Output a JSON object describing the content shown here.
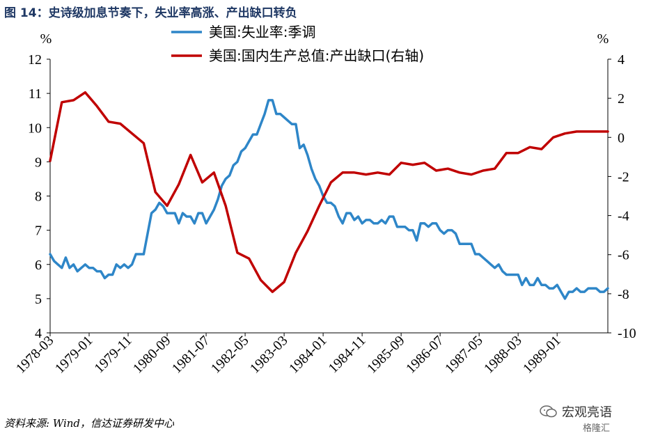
{
  "figure": {
    "title": "图 14：史诗级加息节奏下，失业率高涨、产出缺口转负",
    "source": "资料来源: Wind，信达证券研发中心",
    "watermark": "宏观亮语",
    "watermark_sub": "格隆汇"
  },
  "chart_data": {
    "type": "line",
    "title": "图 14：史诗级加息节奏下，失业率高涨、产出缺口转负",
    "left_axis": {
      "unit": "%",
      "min": 4,
      "max": 12,
      "ticks": [
        4,
        5,
        6,
        7,
        8,
        9,
        10,
        11,
        12
      ]
    },
    "right_axis": {
      "unit": "%",
      "min": -10,
      "max": 4,
      "ticks": [
        -10,
        -8,
        -6,
        -4,
        -2,
        0,
        2,
        4
      ]
    },
    "x_labels": [
      "1978-03",
      "1979-01",
      "1979-11",
      "1980-09",
      "1981-07",
      "1982-05",
      "1983-03",
      "1984-01",
      "1984-11",
      "1985-09",
      "1986-07",
      "1987-05",
      "1988-03",
      "1989-01"
    ],
    "x_range": [
      "1978-03",
      "1990-02"
    ],
    "legend_placement": "top-center",
    "grid": false,
    "series": [
      {
        "name": "美国:失业率:季调",
        "axis": "left",
        "color": "#2e86c8",
        "points": [
          [
            "1978-03",
            6.3
          ],
          [
            "1978-04",
            6.1
          ],
          [
            "1978-05",
            6.0
          ],
          [
            "1978-06",
            5.9
          ],
          [
            "1978-07",
            6.2
          ],
          [
            "1978-08",
            5.9
          ],
          [
            "1978-09",
            6.0
          ],
          [
            "1978-10",
            5.8
          ],
          [
            "1978-11",
            5.9
          ],
          [
            "1978-12",
            6.0
          ],
          [
            "1979-01",
            5.9
          ],
          [
            "1979-02",
            5.9
          ],
          [
            "1979-03",
            5.8
          ],
          [
            "1979-04",
            5.8
          ],
          [
            "1979-05",
            5.6
          ],
          [
            "1979-06",
            5.7
          ],
          [
            "1979-07",
            5.7
          ],
          [
            "1979-08",
            6.0
          ],
          [
            "1979-09",
            5.9
          ],
          [
            "1979-10",
            6.0
          ],
          [
            "1979-11",
            5.9
          ],
          [
            "1979-12",
            6.0
          ],
          [
            "1980-01",
            6.3
          ],
          [
            "1980-02",
            6.3
          ],
          [
            "1980-03",
            6.3
          ],
          [
            "1980-04",
            6.9
          ],
          [
            "1980-05",
            7.5
          ],
          [
            "1980-06",
            7.6
          ],
          [
            "1980-07",
            7.8
          ],
          [
            "1980-08",
            7.7
          ],
          [
            "1980-09",
            7.5
          ],
          [
            "1980-10",
            7.5
          ],
          [
            "1980-11",
            7.5
          ],
          [
            "1980-12",
            7.2
          ],
          [
            "1981-01",
            7.5
          ],
          [
            "1981-02",
            7.4
          ],
          [
            "1981-03",
            7.4
          ],
          [
            "1981-04",
            7.2
          ],
          [
            "1981-05",
            7.5
          ],
          [
            "1981-06",
            7.5
          ],
          [
            "1981-07",
            7.2
          ],
          [
            "1981-08",
            7.4
          ],
          [
            "1981-09",
            7.6
          ],
          [
            "1981-10",
            7.9
          ],
          [
            "1981-11",
            8.3
          ],
          [
            "1981-12",
            8.5
          ],
          [
            "1982-01",
            8.6
          ],
          [
            "1982-02",
            8.9
          ],
          [
            "1982-03",
            9.0
          ],
          [
            "1982-04",
            9.3
          ],
          [
            "1982-05",
            9.4
          ],
          [
            "1982-06",
            9.6
          ],
          [
            "1982-07",
            9.8
          ],
          [
            "1982-08",
            9.8
          ],
          [
            "1982-09",
            10.1
          ],
          [
            "1982-10",
            10.4
          ],
          [
            "1982-11",
            10.8
          ],
          [
            "1982-12",
            10.8
          ],
          [
            "1983-01",
            10.4
          ],
          [
            "1983-02",
            10.4
          ],
          [
            "1983-03",
            10.3
          ],
          [
            "1983-04",
            10.2
          ],
          [
            "1983-05",
            10.1
          ],
          [
            "1983-06",
            10.1
          ],
          [
            "1983-07",
            9.4
          ],
          [
            "1983-08",
            9.5
          ],
          [
            "1983-09",
            9.2
          ],
          [
            "1983-10",
            8.8
          ],
          [
            "1983-11",
            8.5
          ],
          [
            "1983-12",
            8.3
          ],
          [
            "1984-01",
            8.0
          ],
          [
            "1984-02",
            7.8
          ],
          [
            "1984-03",
            7.8
          ],
          [
            "1984-04",
            7.7
          ],
          [
            "1984-05",
            7.4
          ],
          [
            "1984-06",
            7.2
          ],
          [
            "1984-07",
            7.5
          ],
          [
            "1984-08",
            7.5
          ],
          [
            "1984-09",
            7.3
          ],
          [
            "1984-10",
            7.4
          ],
          [
            "1984-11",
            7.2
          ],
          [
            "1984-12",
            7.3
          ],
          [
            "1985-01",
            7.3
          ],
          [
            "1985-02",
            7.2
          ],
          [
            "1985-03",
            7.2
          ],
          [
            "1985-04",
            7.3
          ],
          [
            "1985-05",
            7.2
          ],
          [
            "1985-06",
            7.4
          ],
          [
            "1985-07",
            7.4
          ],
          [
            "1985-08",
            7.1
          ],
          [
            "1985-09",
            7.1
          ],
          [
            "1985-10",
            7.1
          ],
          [
            "1985-11",
            7.0
          ],
          [
            "1985-12",
            7.0
          ],
          [
            "1986-01",
            6.7
          ],
          [
            "1986-02",
            7.2
          ],
          [
            "1986-03",
            7.2
          ],
          [
            "1986-04",
            7.1
          ],
          [
            "1986-05",
            7.2
          ],
          [
            "1986-06",
            7.2
          ],
          [
            "1986-07",
            7.0
          ],
          [
            "1986-08",
            6.9
          ],
          [
            "1986-09",
            7.0
          ],
          [
            "1986-10",
            7.0
          ],
          [
            "1986-11",
            6.9
          ],
          [
            "1986-12",
            6.6
          ],
          [
            "1987-01",
            6.6
          ],
          [
            "1987-02",
            6.6
          ],
          [
            "1987-03",
            6.6
          ],
          [
            "1987-04",
            6.3
          ],
          [
            "1987-05",
            6.3
          ],
          [
            "1987-06",
            6.2
          ],
          [
            "1987-07",
            6.1
          ],
          [
            "1987-08",
            6.0
          ],
          [
            "1987-09",
            5.9
          ],
          [
            "1987-10",
            6.0
          ],
          [
            "1987-11",
            5.8
          ],
          [
            "1987-12",
            5.7
          ],
          [
            "1988-01",
            5.7
          ],
          [
            "1988-02",
            5.7
          ],
          [
            "1988-03",
            5.7
          ],
          [
            "1988-04",
            5.4
          ],
          [
            "1988-05",
            5.6
          ],
          [
            "1988-06",
            5.4
          ],
          [
            "1988-07",
            5.4
          ],
          [
            "1988-08",
            5.6
          ],
          [
            "1988-09",
            5.4
          ],
          [
            "1988-10",
            5.4
          ],
          [
            "1988-11",
            5.3
          ],
          [
            "1988-12",
            5.3
          ],
          [
            "1989-01",
            5.4
          ],
          [
            "1989-02",
            5.2
          ],
          [
            "1989-03",
            5.0
          ],
          [
            "1989-04",
            5.2
          ],
          [
            "1989-05",
            5.2
          ],
          [
            "1989-06",
            5.3
          ],
          [
            "1989-07",
            5.2
          ],
          [
            "1989-08",
            5.2
          ],
          [
            "1989-09",
            5.3
          ],
          [
            "1989-10",
            5.3
          ],
          [
            "1989-11",
            5.3
          ],
          [
            "1989-12",
            5.2
          ],
          [
            "1990-01",
            5.2
          ],
          [
            "1990-02",
            5.3
          ]
        ]
      },
      {
        "name": "美国:国内生产总值:产出缺口(右轴)",
        "axis": "right",
        "color": "#c00000",
        "points": [
          [
            "1978-03",
            -1.2
          ],
          [
            "1978-06",
            1.8
          ],
          [
            "1978-09",
            1.9
          ],
          [
            "1978-12",
            2.3
          ],
          [
            "1979-03",
            1.6
          ],
          [
            "1979-06",
            0.8
          ],
          [
            "1979-09",
            0.7
          ],
          [
            "1979-12",
            0.2
          ],
          [
            "1980-03",
            -0.3
          ],
          [
            "1980-06",
            -2.8
          ],
          [
            "1980-09",
            -3.5
          ],
          [
            "1980-12",
            -2.4
          ],
          [
            "1981-03",
            -0.9
          ],
          [
            "1981-06",
            -2.3
          ],
          [
            "1981-09",
            -1.8
          ],
          [
            "1981-12",
            -3.5
          ],
          [
            "1982-03",
            -5.9
          ],
          [
            "1982-06",
            -6.2
          ],
          [
            "1982-09",
            -7.3
          ],
          [
            "1982-12",
            -7.9
          ],
          [
            "1983-03",
            -7.4
          ],
          [
            "1983-06",
            -5.9
          ],
          [
            "1983-09",
            -4.8
          ],
          [
            "1983-12",
            -3.5
          ],
          [
            "1984-03",
            -2.3
          ],
          [
            "1984-06",
            -1.8
          ],
          [
            "1984-09",
            -1.8
          ],
          [
            "1984-12",
            -1.9
          ],
          [
            "1985-03",
            -1.8
          ],
          [
            "1985-06",
            -1.9
          ],
          [
            "1985-09",
            -1.3
          ],
          [
            "1985-12",
            -1.4
          ],
          [
            "1986-03",
            -1.3
          ],
          [
            "1986-06",
            -1.7
          ],
          [
            "1986-09",
            -1.6
          ],
          [
            "1986-12",
            -1.8
          ],
          [
            "1987-03",
            -1.9
          ],
          [
            "1987-06",
            -1.7
          ],
          [
            "1987-09",
            -1.6
          ],
          [
            "1987-12",
            -0.8
          ],
          [
            "1988-03",
            -0.8
          ],
          [
            "1988-06",
            -0.5
          ],
          [
            "1988-09",
            -0.6
          ],
          [
            "1988-12",
            0.0
          ],
          [
            "1989-03",
            0.2
          ],
          [
            "1989-06",
            0.3
          ],
          [
            "1989-09",
            0.3
          ],
          [
            "1989-12",
            0.3
          ],
          [
            "1990-02",
            0.3
          ]
        ]
      }
    ]
  }
}
